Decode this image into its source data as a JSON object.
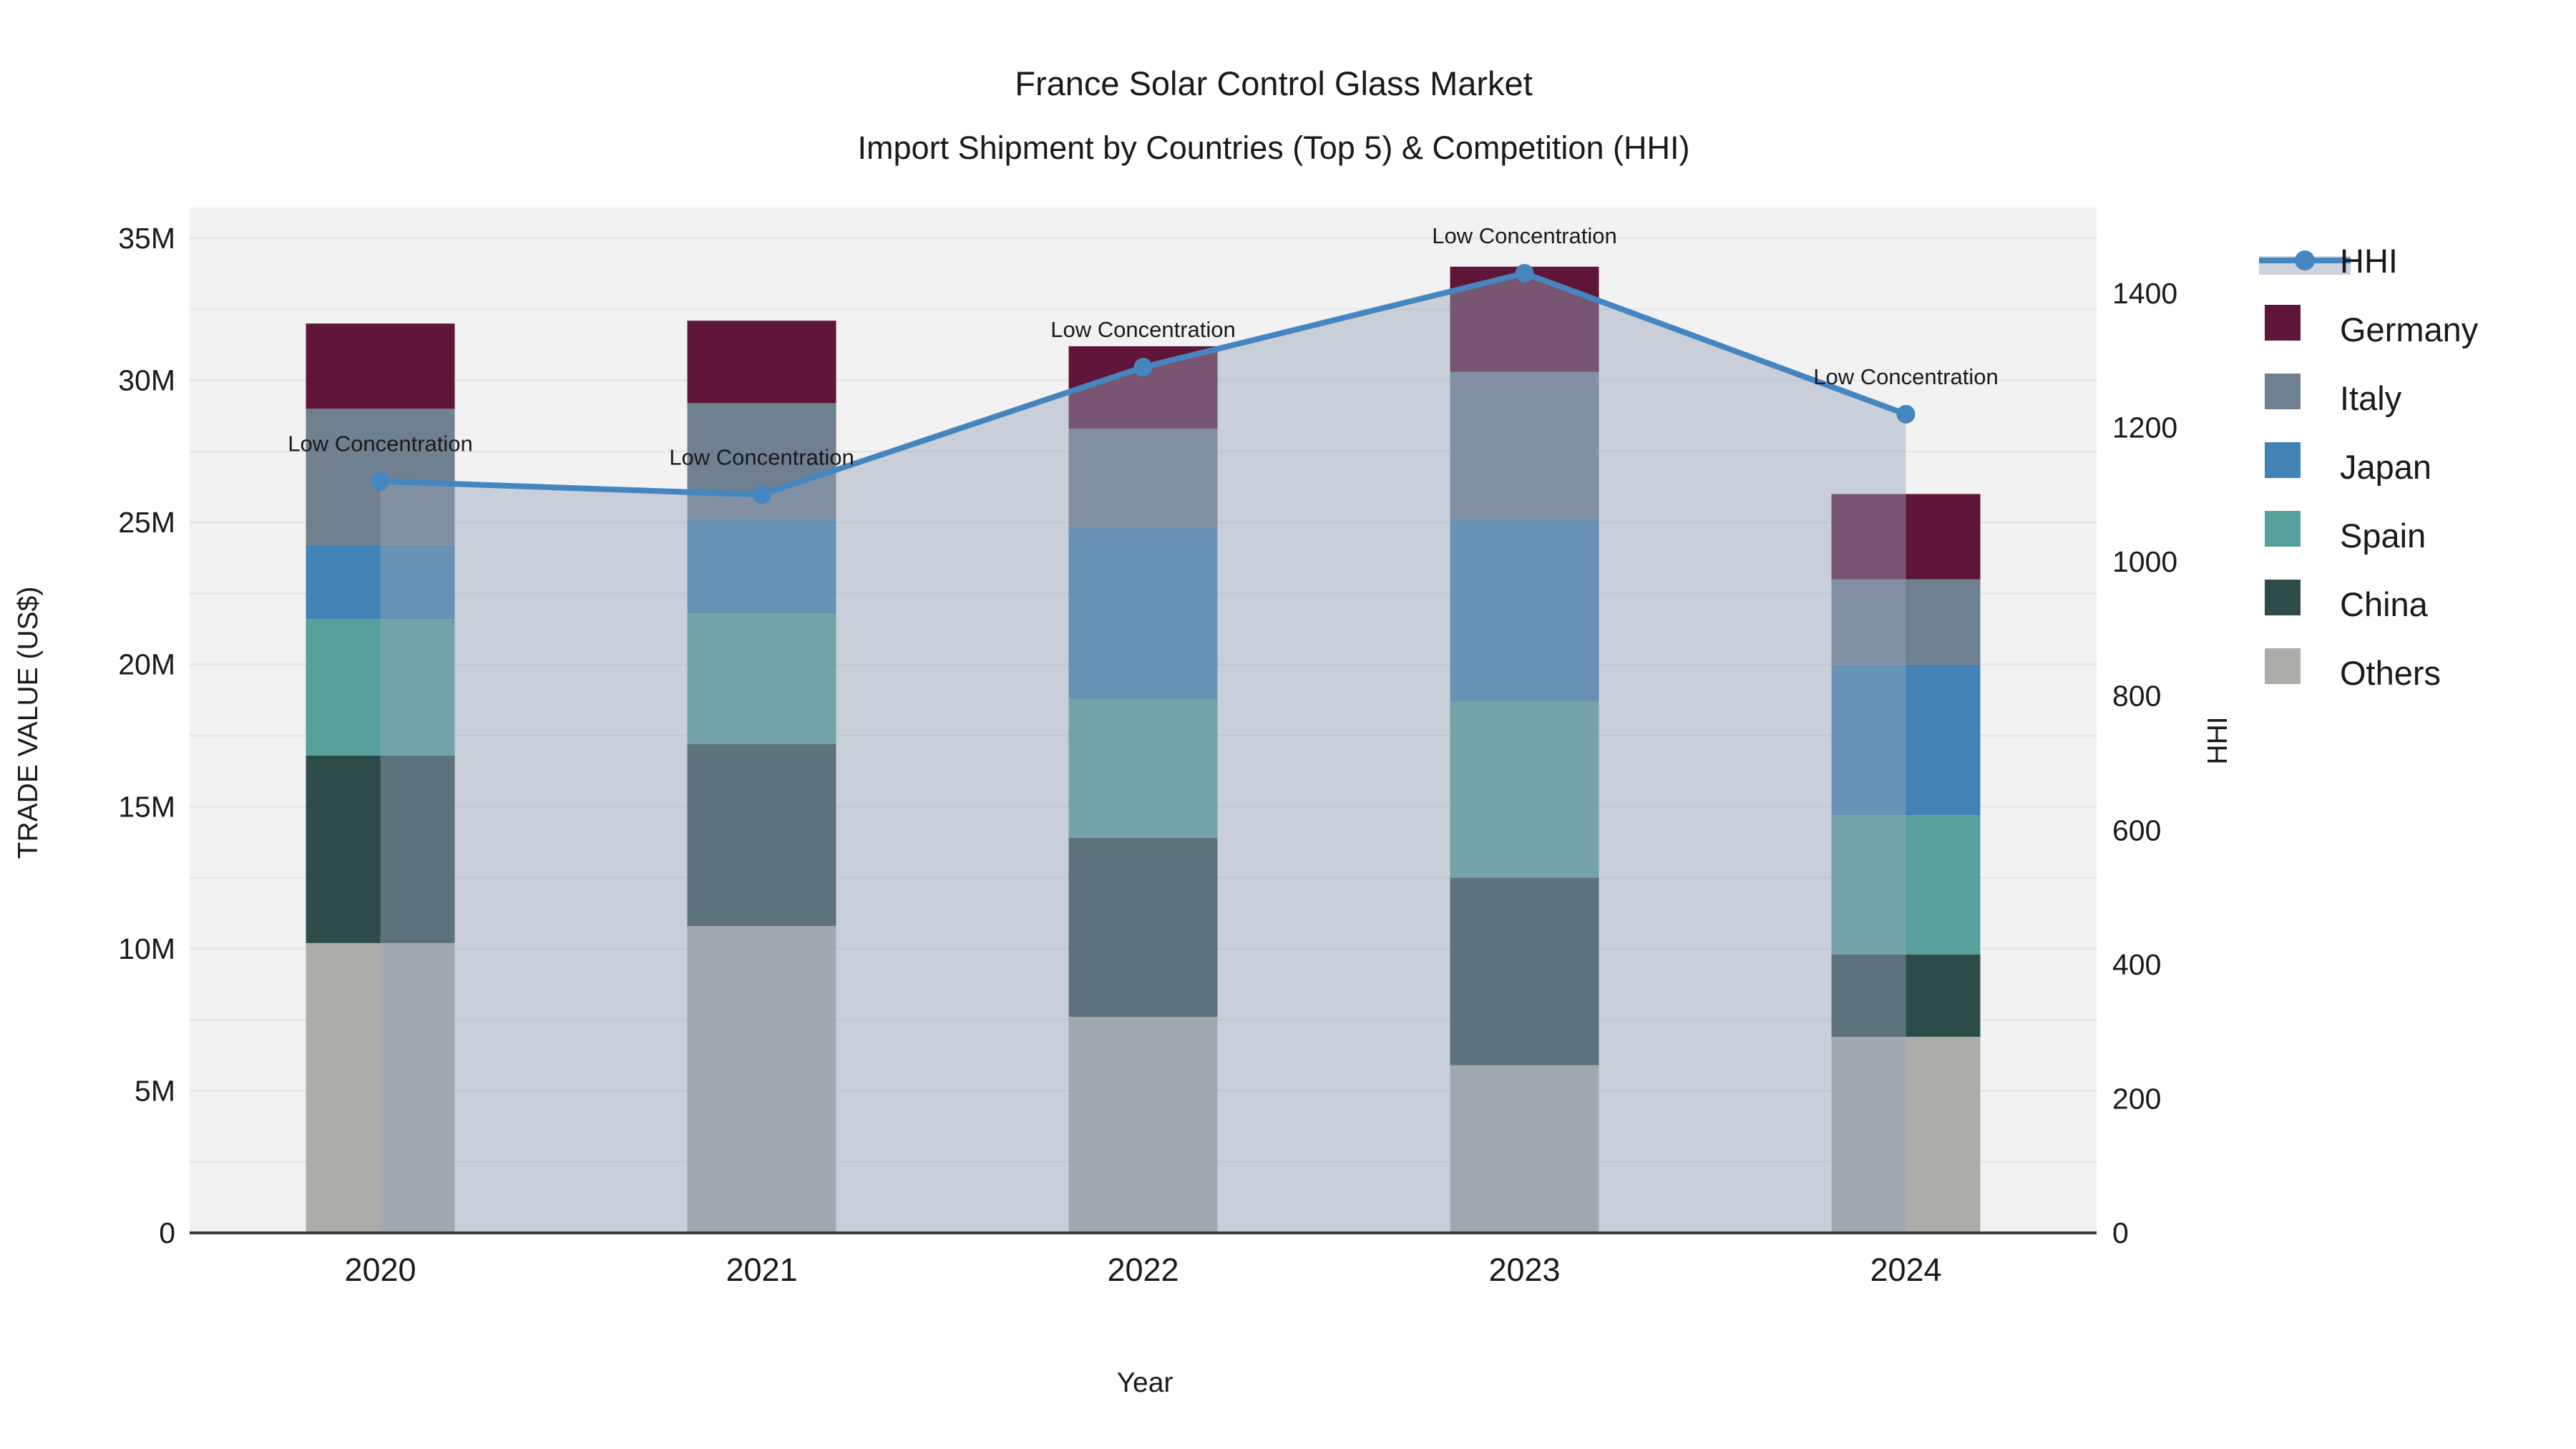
{
  "title": {
    "line1": "France Solar Control Glass Market",
    "line2": "Import Shipment by Countries (Top 5) & Competition (HHI)"
  },
  "axes": {
    "left": {
      "title": "TRADE VALUE (US$)",
      "ticks": [
        "0",
        "5M",
        "10M",
        "15M",
        "20M",
        "25M",
        "30M",
        "35M"
      ],
      "tick_values": [
        0,
        5,
        10,
        15,
        20,
        25,
        30,
        35
      ],
      "range": [
        0,
        35
      ]
    },
    "right": {
      "title": "HHI",
      "ticks": [
        "0",
        "200",
        "400",
        "600",
        "800",
        "1000",
        "1200",
        "1400"
      ],
      "tick_values": [
        0,
        200,
        400,
        600,
        800,
        1000,
        1200,
        1400
      ],
      "range": [
        0,
        1470
      ]
    },
    "x": {
      "title": "Year",
      "categories": [
        "2020",
        "2021",
        "2022",
        "2023",
        "2024"
      ]
    }
  },
  "chart_data": {
    "type": "bar+line",
    "title": "France Solar Control Glass Market — Import Shipment by Countries (Top 5) & Competition (HHI)",
    "categories": [
      "2020",
      "2021",
      "2022",
      "2023",
      "2024"
    ],
    "stack_order_bottom_to_top": [
      "Others",
      "China",
      "Spain",
      "Japan",
      "Italy",
      "Germany"
    ],
    "series": [
      {
        "name": "Others",
        "color": "#acaca8",
        "values": [
          10.2,
          10.8,
          7.6,
          5.9,
          6.9
        ]
      },
      {
        "name": "China",
        "color": "#2d4c49",
        "values": [
          6.6,
          6.4,
          6.3,
          6.6,
          2.9
        ]
      },
      {
        "name": "Spain",
        "color": "#57a09c",
        "values": [
          4.8,
          4.6,
          4.9,
          6.2,
          4.9
        ]
      },
      {
        "name": "Japan",
        "color": "#4282b5",
        "values": [
          2.6,
          3.3,
          6.0,
          6.4,
          5.3
        ]
      },
      {
        "name": "Italy",
        "color": "#6f8090",
        "values": [
          4.8,
          4.1,
          3.5,
          5.2,
          3.0
        ]
      },
      {
        "name": "Germany",
        "color": "#5f1537",
        "values": [
          3.0,
          2.9,
          2.9,
          3.7,
          3.0
        ]
      }
    ],
    "bar_totals_musd": [
      32.0,
      32.1,
      31.2,
      34.0,
      26.0
    ],
    "line_series": {
      "name": "HHI",
      "color": "#4586c0",
      "fill_color": "rgba(150,165,185,0.45)",
      "values": [
        1120,
        1100,
        1290,
        1430,
        1220
      ]
    },
    "annotations": [
      {
        "text": "Low Concentration",
        "category": "2020"
      },
      {
        "text": "Low Concentration",
        "category": "2021"
      },
      {
        "text": "Low Concentration",
        "category": "2022"
      },
      {
        "text": "Low Concentration",
        "category": "2023"
      },
      {
        "text": "Low Concentration",
        "category": "2024"
      }
    ],
    "ylabel_left": "TRADE VALUE (US$)",
    "ylabel_right": "HHI",
    "xlabel": "Year",
    "grid": true
  },
  "legend": {
    "items": [
      {
        "label": "HHI",
        "type": "line",
        "color": "#4586c0"
      },
      {
        "label": "Germany",
        "type": "box",
        "color": "#5f1537"
      },
      {
        "label": "Italy",
        "type": "box",
        "color": "#6f8090"
      },
      {
        "label": "Japan",
        "type": "box",
        "color": "#4282b5"
      },
      {
        "label": "Spain",
        "type": "box",
        "color": "#57a09c"
      },
      {
        "label": "China",
        "type": "box",
        "color": "#2d4c49"
      },
      {
        "label": "Others",
        "type": "box",
        "color": "#acaca8"
      }
    ]
  },
  "colors": {
    "plot_bg": "#f2f2f3",
    "gridline": "#e4e6e9",
    "axis_line": "#3a3a3a",
    "text": "#1a1a1a"
  }
}
